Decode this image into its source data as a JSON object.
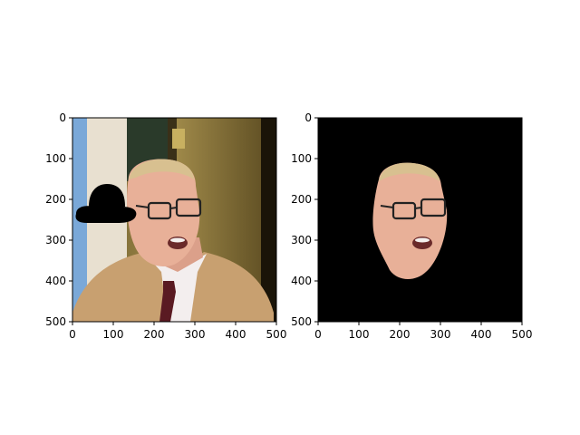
{
  "chart_data": [
    {
      "type": "image",
      "xlim": [
        0,
        500
      ],
      "ylim": [
        500,
        0
      ],
      "y_inverted": true,
      "x_ticks": [
        0,
        100,
        200,
        300,
        400,
        500
      ],
      "y_ticks": [
        0,
        100,
        200,
        300,
        400,
        500
      ],
      "x_tick_labels": [
        "0",
        "100",
        "200",
        "300",
        "400",
        "500"
      ],
      "y_tick_labels": [
        "0",
        "100",
        "200",
        "300",
        "400",
        "500"
      ],
      "content": "photo of an older man with glasses, black bowler hat overlay on left"
    },
    {
      "type": "image",
      "xlim": [
        0,
        500
      ],
      "ylim": [
        500,
        0
      ],
      "y_inverted": true,
      "x_ticks": [
        0,
        100,
        200,
        300,
        400,
        500
      ],
      "y_ticks": [
        0,
        100,
        200,
        300,
        400,
        500
      ],
      "x_tick_labels": [
        "0",
        "100",
        "200",
        "300",
        "400",
        "500"
      ],
      "y_tick_labels": [
        "0",
        "100",
        "200",
        "300",
        "400",
        "500"
      ],
      "content": "segmented face on black background"
    }
  ],
  "colors": {
    "skin": "#e8b098",
    "coat": "#c8a070",
    "hat": "#000000",
    "background_dark": "#000000",
    "flag_blue": "#7aa8d8"
  }
}
